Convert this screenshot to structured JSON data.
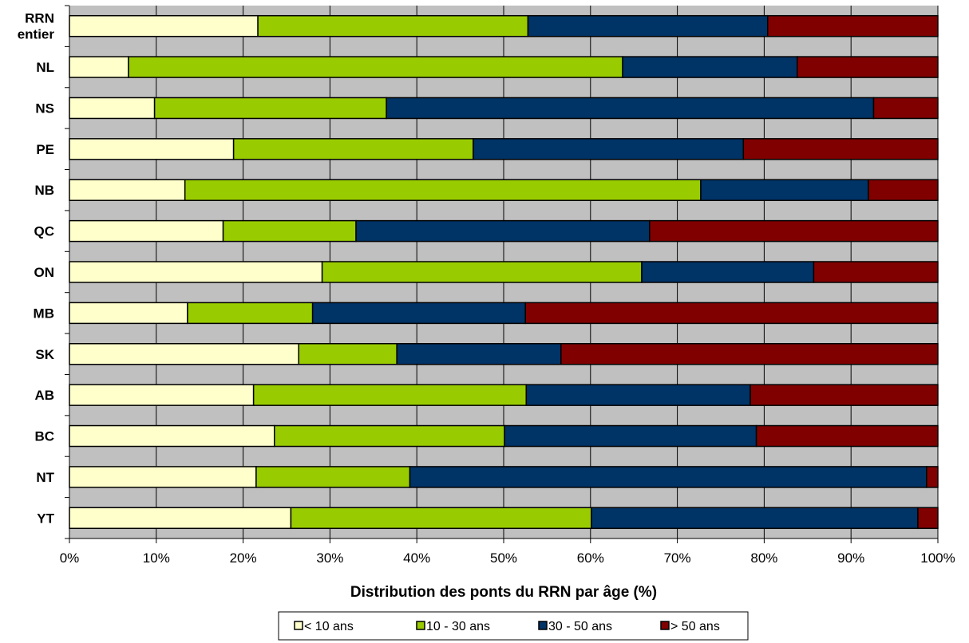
{
  "chart_data": {
    "type": "bar",
    "orientation": "horizontal",
    "stacked": true,
    "categories": [
      "RRN entier",
      "NL",
      "NS",
      "PE",
      "NB",
      "QC",
      "ON",
      "MB",
      "SK",
      "AB",
      "BC",
      "NT",
      "YT"
    ],
    "series": [
      {
        "name": "< 10 ans",
        "color": "#FFFFCC",
        "values": [
          21.7,
          6.8,
          9.8,
          18.9,
          13.3,
          17.7,
          29.1,
          13.6,
          26.4,
          21.2,
          23.6,
          21.5,
          25.5
        ]
      },
      {
        "name": "10 - 30 ans",
        "color": "#99CC00",
        "values": [
          31.1,
          56.9,
          26.7,
          27.6,
          59.4,
          15.3,
          36.8,
          14.4,
          11.3,
          31.4,
          26.5,
          17.7,
          34.6
        ]
      },
      {
        "name": "30 - 50 ans",
        "color": "#003366",
        "values": [
          27.6,
          20.1,
          56.1,
          31.1,
          19.3,
          33.8,
          19.8,
          24.5,
          18.9,
          25.8,
          29.0,
          59.5,
          37.6
        ]
      },
      {
        "name": "> 50 ans",
        "color": "#800000",
        "values": [
          19.6,
          16.2,
          7.4,
          22.4,
          8.0,
          33.2,
          14.3,
          47.5,
          43.4,
          21.6,
          20.9,
          1.3,
          2.3
        ]
      }
    ],
    "xlabel": "Distribution des ponts du RRN par âge (%)",
    "ylabel": "",
    "xlim": [
      0,
      100
    ],
    "xticks": [
      "0%",
      "10%",
      "20%",
      "30%",
      "40%",
      "50%",
      "60%",
      "70%",
      "80%",
      "90%",
      "100%"
    ],
    "grid": true,
    "plot_background": "#C0C0C0",
    "legend_position": "bottom"
  }
}
